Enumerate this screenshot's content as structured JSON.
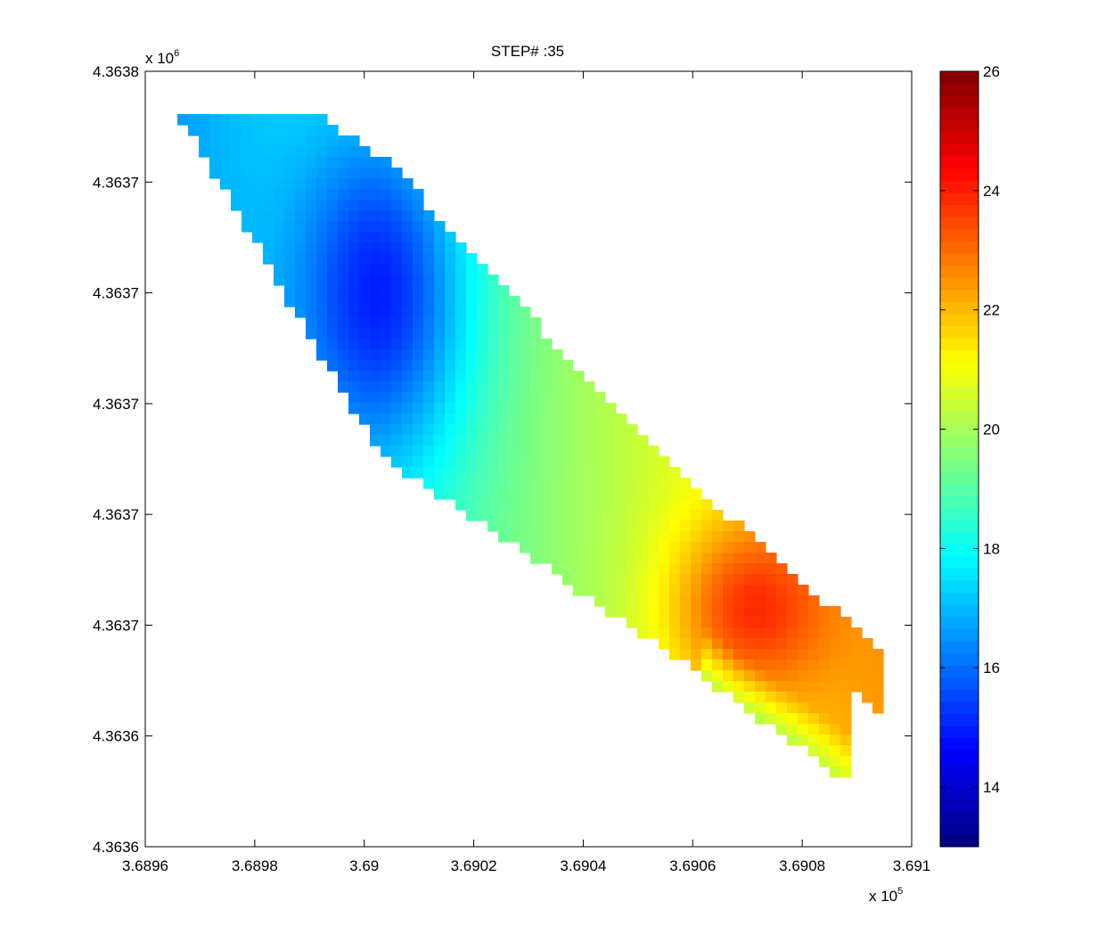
{
  "chart_data": {
    "type": "heatmap",
    "title": "STEP# :35",
    "xlabel": "",
    "ylabel": "",
    "x_exponent_label": {
      "base": "x 10",
      "exp": "5"
    },
    "y_exponent_label": {
      "base": "x 10",
      "exp": "6"
    },
    "xlim": [
      3.6896,
      3.691
    ],
    "x_ticks": [
      {
        "value": 3.6896,
        "label": "3.6896"
      },
      {
        "value": 3.6898,
        "label": "3.6898"
      },
      {
        "value": 3.69,
        "label": "3.69"
      },
      {
        "value": 3.6902,
        "label": "3.6902"
      },
      {
        "value": 3.6904,
        "label": "3.6904"
      },
      {
        "value": 3.6906,
        "label": "3.6906"
      },
      {
        "value": 3.6908,
        "label": "3.6908"
      },
      {
        "value": 3.691,
        "label": "3.691"
      }
    ],
    "ylim": [
      0,
      7
    ],
    "y_ticks": [
      {
        "value": 0,
        "label": "4.3636"
      },
      {
        "value": 1,
        "label": "4.3636"
      },
      {
        "value": 2,
        "label": "4.3637"
      },
      {
        "value": 3,
        "label": "4.3637"
      },
      {
        "value": 4,
        "label": "4.3637"
      },
      {
        "value": 5,
        "label": "4.3637"
      },
      {
        "value": 6,
        "label": "4.3637"
      },
      {
        "value": 7,
        "label": "4.3638"
      }
    ],
    "colorbar": {
      "colormap": "jet",
      "clim": [
        13,
        26
      ],
      "ticks": [
        14,
        16,
        18,
        20,
        22,
        24,
        26
      ]
    },
    "region": {
      "upper_edge": [
        [
          3.68966,
          6.63
        ],
        [
          3.68991,
          6.63
        ],
        [
          3.69004,
          6.21
        ],
        [
          3.6905,
          3.72
        ],
        [
          3.69095,
          1.73
        ]
      ],
      "lower_edge": [
        [
          3.68966,
          6.63
        ],
        [
          3.69003,
          3.53
        ],
        [
          3.6905,
          1.95
        ],
        [
          3.69089,
          0.56
        ]
      ]
    },
    "field_peaks": [
      {
        "name": "low",
        "x": 3.69004,
        "y": 5.0,
        "value": 16.2,
        "spread_x": 0.00011,
        "spread_y": 1.1
      },
      {
        "name": "high",
        "x": 3.6907,
        "y": 2.15,
        "value": 22.0,
        "spread_x": 0.0001,
        "spread_y": 0.55
      }
    ],
    "field_base": 19.5,
    "field_gradient": {
      "per_x_unit": 14000,
      "per_y_unit": -0.35
    }
  }
}
